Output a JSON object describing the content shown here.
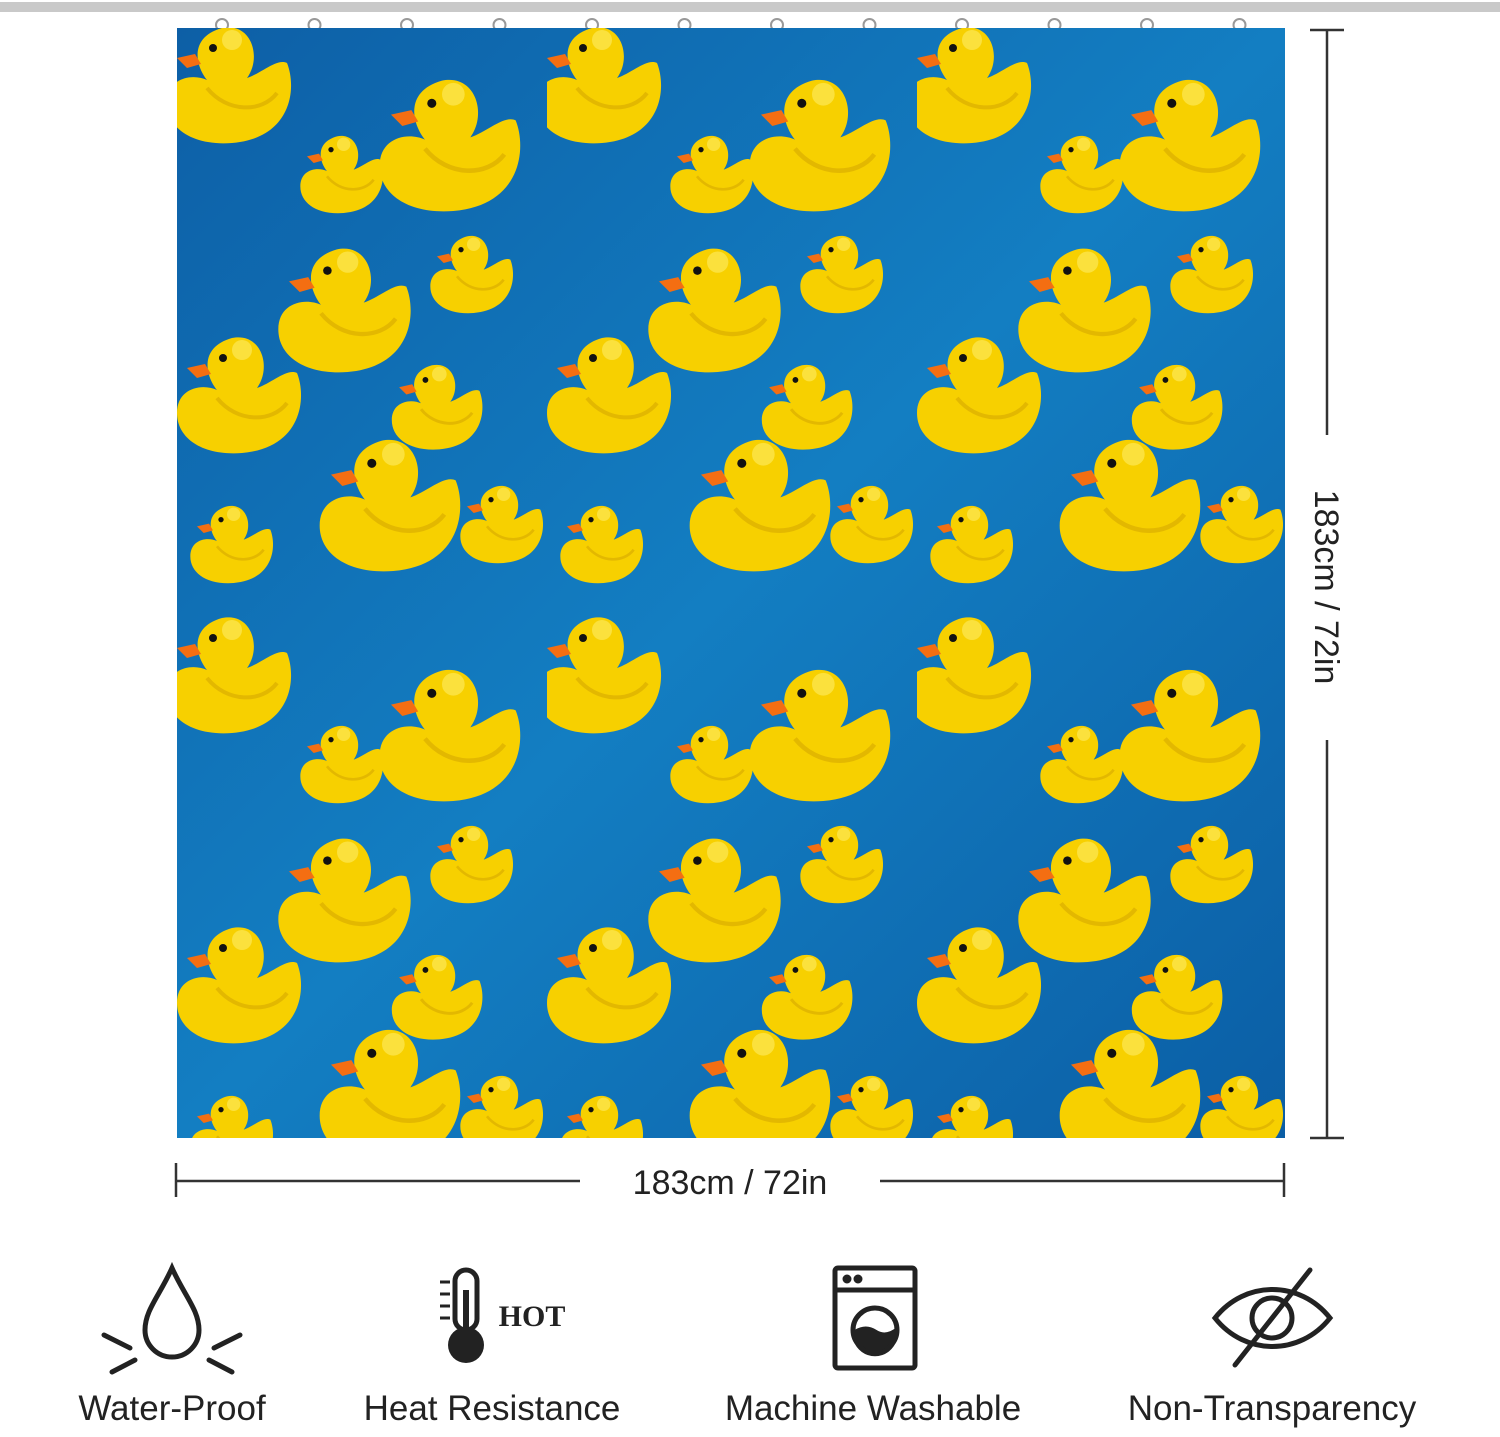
{
  "dimensions": {
    "width": "183cm / 72in",
    "height": "183cm / 72in"
  },
  "features": [
    {
      "label": "Water-Proof"
    },
    {
      "label": "Heat Resistance",
      "icon_text": "HOT"
    },
    {
      "label": "Machine Washable"
    },
    {
      "label": "Non-Transparency"
    }
  ]
}
